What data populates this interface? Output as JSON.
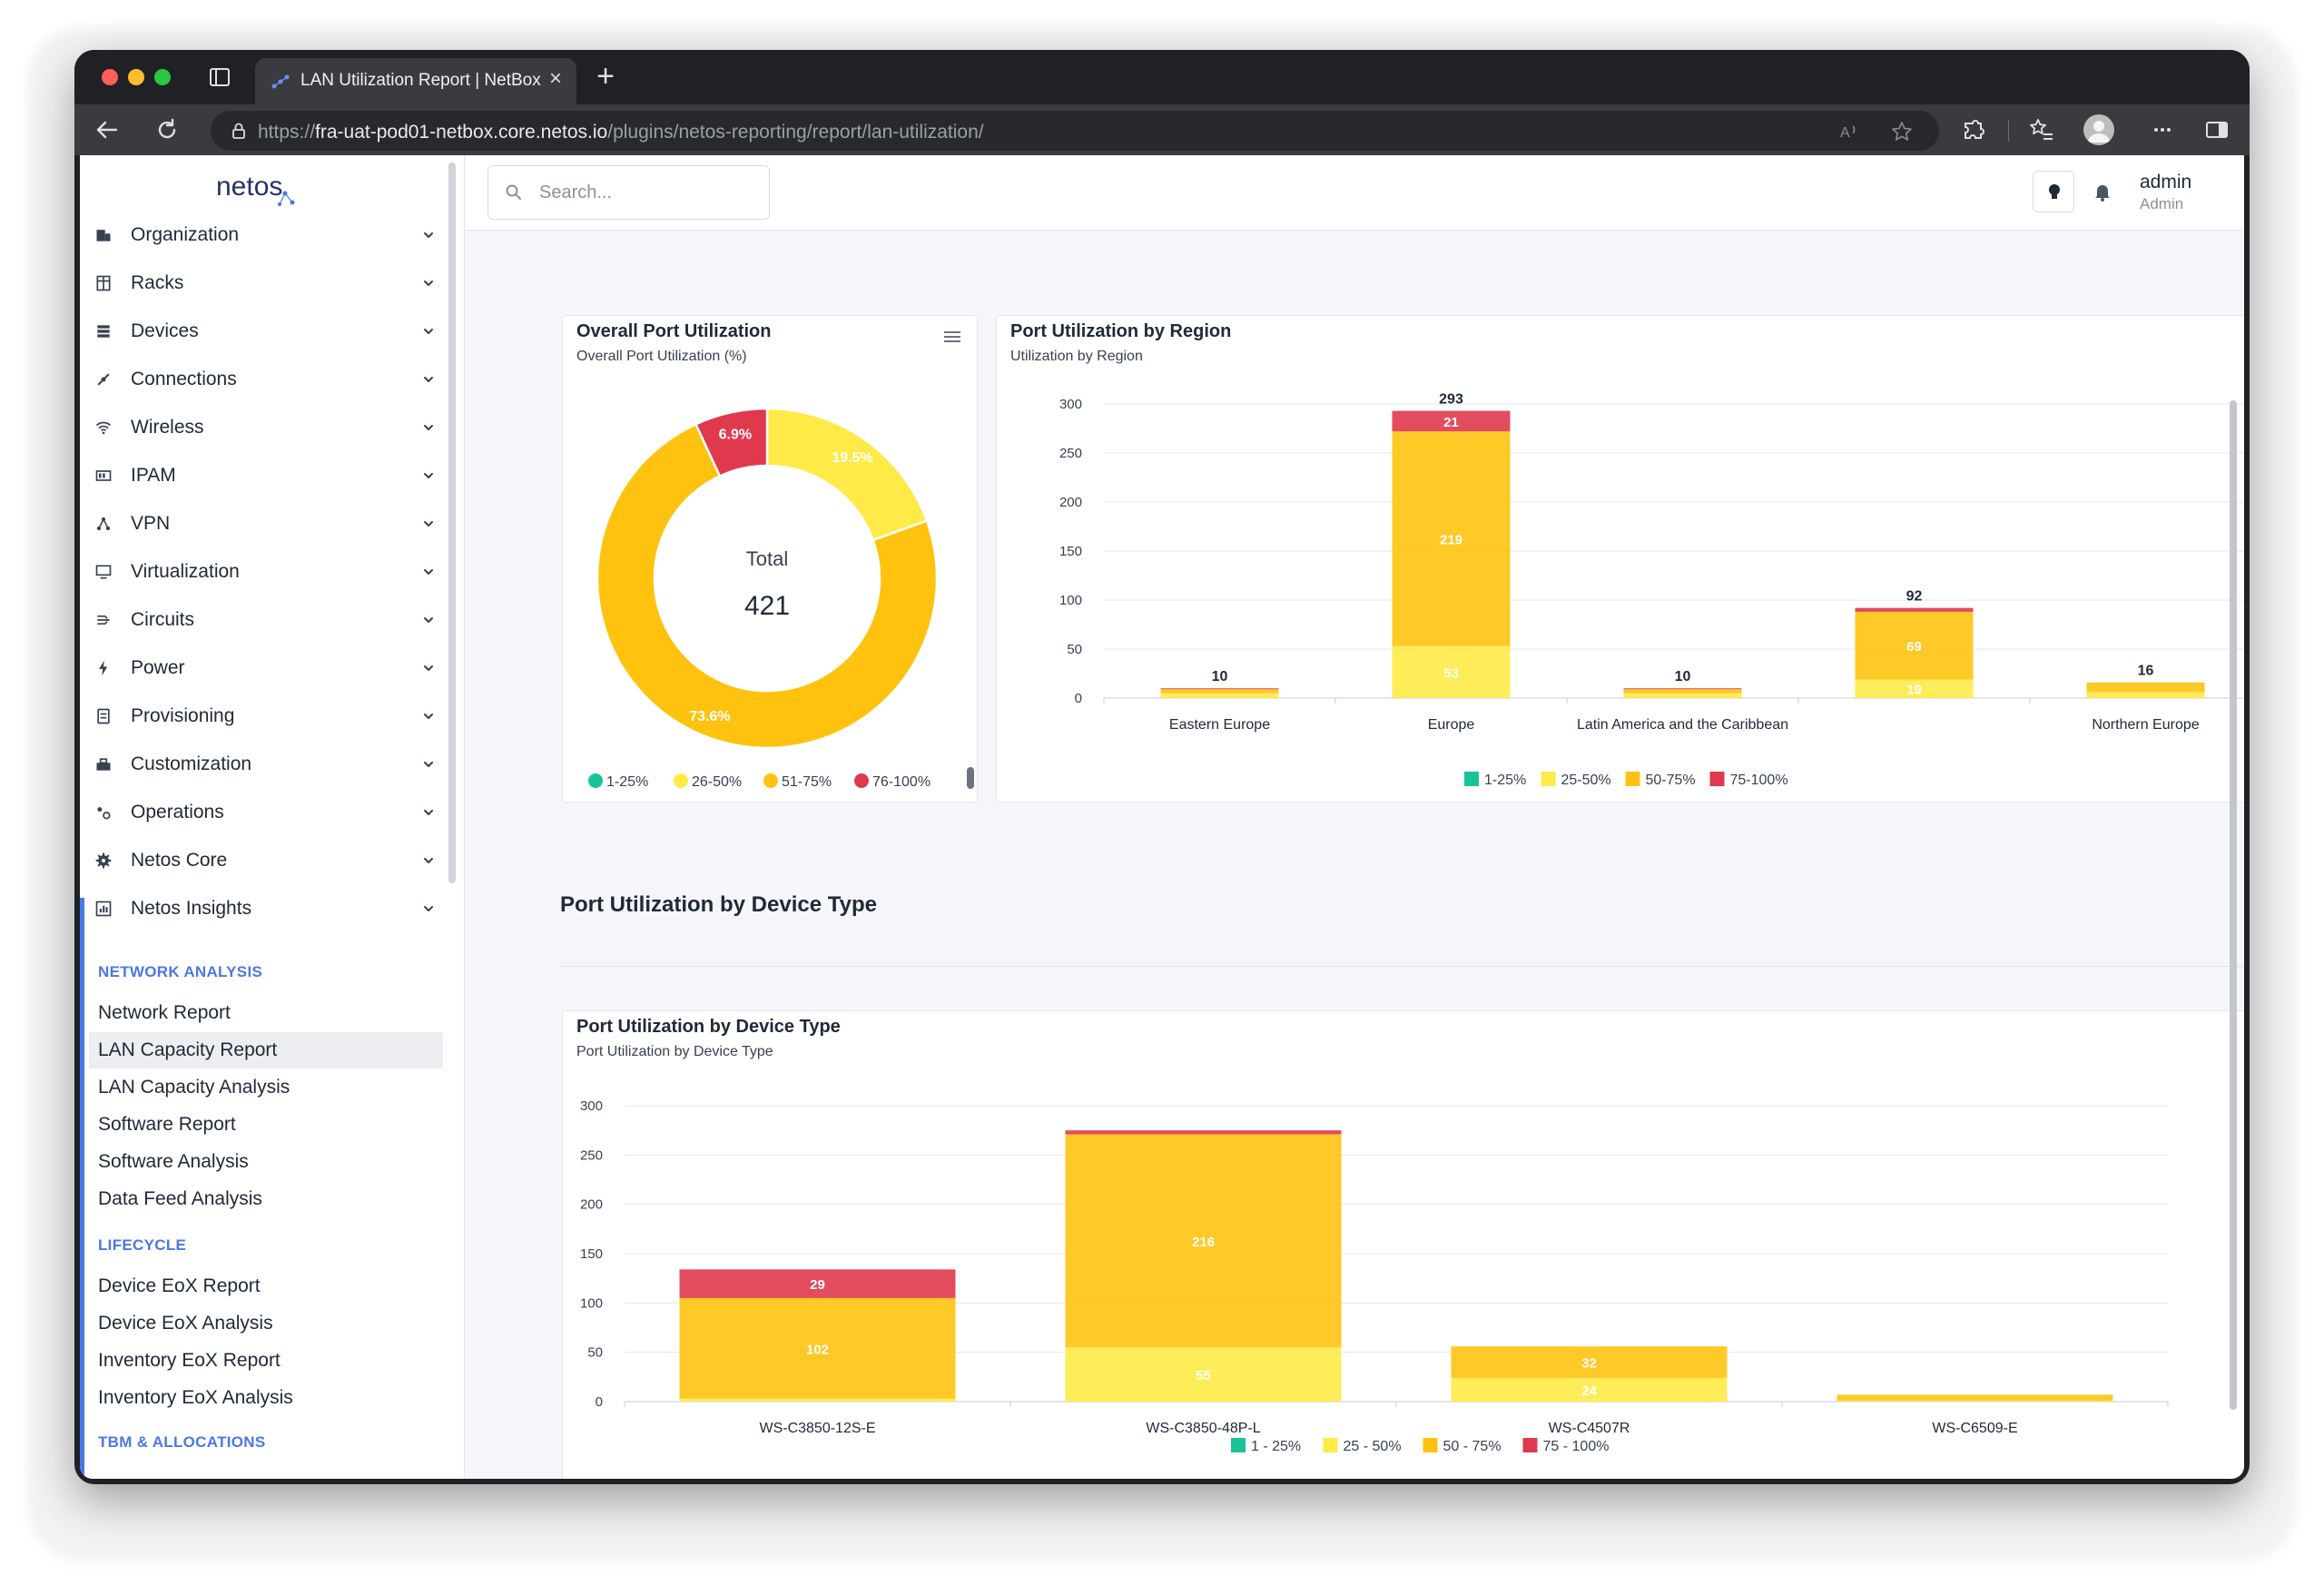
{
  "browser": {
    "tab_title": "LAN Utilization Report | NetBox",
    "url_scheme": "https://",
    "url_host": "fra-uat-pod01-netbox.core.netos.io",
    "url_path": "/plugins/netos-reporting/report/lan-utilization/"
  },
  "sidebar": {
    "logo_text": "netos",
    "menu": [
      {
        "label": "Organization",
        "icon": "organization-icon"
      },
      {
        "label": "Racks",
        "icon": "racks-icon"
      },
      {
        "label": "Devices",
        "icon": "devices-icon"
      },
      {
        "label": "Connections",
        "icon": "connections-icon"
      },
      {
        "label": "Wireless",
        "icon": "wireless-icon"
      },
      {
        "label": "IPAM",
        "icon": "ipam-icon"
      },
      {
        "label": "VPN",
        "icon": "vpn-icon"
      },
      {
        "label": "Virtualization",
        "icon": "virtualization-icon"
      },
      {
        "label": "Circuits",
        "icon": "circuits-icon"
      },
      {
        "label": "Power",
        "icon": "power-icon"
      },
      {
        "label": "Provisioning",
        "icon": "provisioning-icon"
      },
      {
        "label": "Customization",
        "icon": "customization-icon"
      },
      {
        "label": "Operations",
        "icon": "operations-icon"
      },
      {
        "label": "Netos Core",
        "icon": "gear-icon"
      },
      {
        "label": "Netos Insights",
        "icon": "insights-icon"
      }
    ],
    "sections": [
      {
        "heading": "NETWORK ANALYSIS",
        "items": [
          "Network Report",
          "LAN Capacity Report",
          "LAN Capacity Analysis",
          "Software Report",
          "Software Analysis",
          "Data Feed Analysis"
        ]
      },
      {
        "heading": "LIFECYCLE",
        "items": [
          "Device EoX Report",
          "Device EoX Analysis",
          "Inventory EoX Report",
          "Inventory EoX Analysis"
        ]
      },
      {
        "heading": "TBM & ALLOCATIONS",
        "items": []
      }
    ],
    "active_item": "LAN Capacity Report"
  },
  "header": {
    "search_placeholder": "Search...",
    "user_name": "admin",
    "user_role": "Admin"
  },
  "section_title": "Port Utilization by Device Type",
  "colors": {
    "green": "#19c39a",
    "yellow": "#ffea47",
    "amber": "#ffc30f",
    "red": "#e0394e"
  },
  "chart_data": [
    {
      "type": "pie",
      "title": "Overall Port Utilization",
      "subtitle": "Overall Port Utilization (%)",
      "center_label": "Total",
      "center_value": "421",
      "slices": [
        {
          "name": "1-25%",
          "value": 0,
          "label": "",
          "color": "#19c39a"
        },
        {
          "name": "26-50%",
          "value": 19.5,
          "label": "19.5%",
          "color": "#ffea47"
        },
        {
          "name": "51-75%",
          "value": 73.6,
          "label": "73.6%",
          "color": "#ffc30f"
        },
        {
          "name": "76-100%",
          "value": 6.9,
          "label": "6.9%",
          "color": "#e0394e"
        }
      ],
      "legend": [
        "1-25%",
        "26-50%",
        "51-75%",
        "76-100%"
      ]
    },
    {
      "type": "bar",
      "stacked": true,
      "title": "Port Utilization by Region",
      "subtitle": "Utilization by Region",
      "categories": [
        "Eastern Europe",
        "Europe",
        "Latin America and the Caribbean",
        "",
        "Northern Europe"
      ],
      "ylim": [
        0,
        300
      ],
      "yticks": [
        0,
        50,
        100,
        150,
        200,
        250,
        300
      ],
      "totals": [
        10,
        293,
        10,
        92,
        16
      ],
      "series": [
        {
          "name": "1-25%",
          "color": "#19c39a",
          "values": [
            0,
            0,
            0,
            0,
            0
          ],
          "labels": [
            "",
            "",
            "",
            "",
            ""
          ]
        },
        {
          "name": "25-50%",
          "color": "#ffea47",
          "values": [
            5,
            53,
            5,
            19,
            6
          ],
          "labels": [
            "",
            "53",
            "",
            "19",
            ""
          ]
        },
        {
          "name": "50-75%",
          "color": "#ffc30f",
          "values": [
            4,
            219,
            4,
            69,
            10
          ],
          "labels": [
            "",
            "219",
            "",
            "69",
            ""
          ]
        },
        {
          "name": "75-100%",
          "color": "#e0394e",
          "values": [
            1,
            21,
            1,
            4,
            0
          ],
          "labels": [
            "",
            "21",
            "",
            "",
            ""
          ]
        }
      ]
    },
    {
      "type": "bar",
      "stacked": true,
      "title": "Port Utilization by Device Type",
      "subtitle": "Port Utilization by Device Type",
      "categories": [
        "WS-C3850-12S-E",
        "WS-C3850-48P-L",
        "WS-C4507R",
        "WS-C6509-E"
      ],
      "ylim": [
        0,
        300
      ],
      "yticks": [
        0,
        50,
        100,
        150,
        200,
        250,
        300
      ],
      "totals": [],
      "series": [
        {
          "name": "1 - 25%",
          "color": "#19c39a",
          "values": [
            0,
            0,
            0,
            0
          ],
          "labels": [
            "",
            "",
            "",
            ""
          ]
        },
        {
          "name": "25 - 50%",
          "color": "#ffea47",
          "values": [
            3,
            55,
            24,
            1
          ],
          "labels": [
            "",
            "55",
            "24",
            ""
          ]
        },
        {
          "name": "50 - 75%",
          "color": "#ffc30f",
          "values": [
            102,
            216,
            32,
            6
          ],
          "labels": [
            "102",
            "216",
            "32",
            ""
          ]
        },
        {
          "name": "75 - 100%",
          "color": "#e0394e",
          "values": [
            29,
            4,
            0,
            0
          ],
          "labels": [
            "29",
            "",
            "",
            ""
          ]
        }
      ]
    }
  ]
}
